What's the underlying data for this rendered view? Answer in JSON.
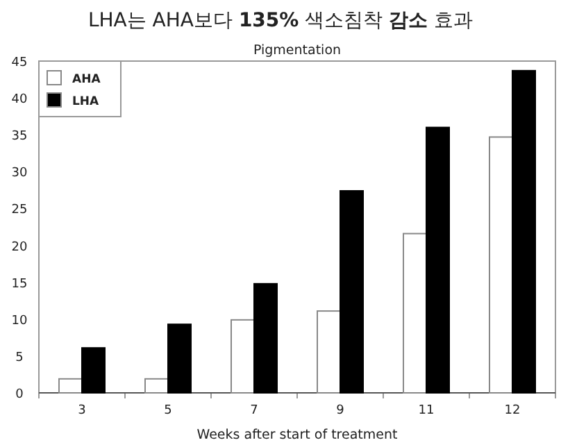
{
  "chart_data": {
    "type": "bar",
    "title": "LHA는 AHA보다 **135%** 색소침착 **감소** 효과",
    "subtitle": "Pigmentation",
    "xlabel": "Weeks after start of treatment",
    "categories": [
      "3",
      "5",
      "7",
      "9",
      "11",
      "12"
    ],
    "series": [
      {
        "name": "AHA",
        "color": "#ffffff",
        "values": [
          1.9,
          1.9,
          9.9,
          11.1,
          21.6,
          34.7
        ]
      },
      {
        "name": "LHA",
        "color": "#000000",
        "values": [
          6.1,
          9.3,
          14.8,
          27.4,
          36.0,
          43.7
        ]
      }
    ],
    "ylim": [
      0,
      45
    ],
    "yticks": [
      0,
      5,
      10,
      15,
      20,
      25,
      30,
      35,
      40,
      45
    ],
    "legend": "top left"
  }
}
